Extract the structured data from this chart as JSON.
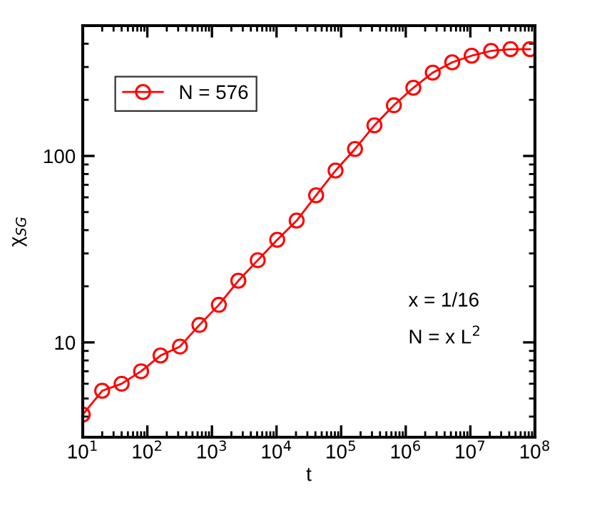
{
  "chart_data": {
    "type": "line",
    "xlabel": "t",
    "ylabel": "χ$_{SG}$",
    "log": "xy",
    "x": [
      10,
      20,
      40,
      80,
      160,
      320,
      640,
      1280,
      2560,
      5120,
      10240,
      20480,
      40960,
      81920,
      163840,
      327680,
      655360,
      1310720,
      2621440,
      5242880,
      10485760,
      20971520,
      41943040,
      83886080
    ],
    "series": [
      {
        "name": "N = 576",
        "color": "#ff0000",
        "values": [
          4.1,
          5.5,
          6.0,
          7.0,
          8.5,
          9.5,
          12.4,
          15.9,
          21.4,
          27.6,
          35.5,
          45,
          61.5,
          83.5,
          109,
          146,
          187,
          232,
          280,
          318,
          345,
          366,
          374,
          374
        ]
      }
    ],
    "xlim": [
      10,
      100000000
    ],
    "ylim": [
      3.1,
      500
    ],
    "xticks": [
      {
        "value": 10,
        "label": "10$^{1}$"
      },
      {
        "value": 100,
        "label": "10$^{2}$"
      },
      {
        "value": 1000,
        "label": "10$^{3}$"
      },
      {
        "value": 10000,
        "label": "10$^{4}$"
      },
      {
        "value": 100000,
        "label": "10$^{5}$"
      },
      {
        "value": 1000000,
        "label": "10$^{6}$"
      },
      {
        "value": 10000000,
        "label": "10$^{7}$"
      },
      {
        "value": 100000000,
        "label": "10$^{8}$"
      }
    ],
    "yticks": [
      10,
      100
    ],
    "marker": "circle",
    "line_style": "solid",
    "grid": false,
    "legend": "top left",
    "annotations": [
      "x = 1/16",
      "N = x L$^{2}$"
    ]
  }
}
